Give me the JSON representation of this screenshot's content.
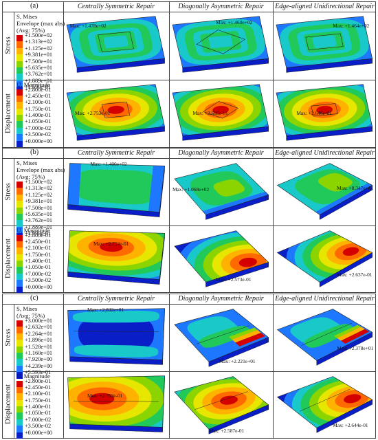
{
  "panels": [
    {
      "label": "(a)",
      "columns": [
        "Centrally Symmetric Repair",
        "Diagonally Asymmetric Repair",
        "Edge-aligned Unidirectional Repair"
      ],
      "rows": [
        {
          "name": "Stress",
          "legend": {
            "title": [
              "S, Mises",
              "Envelope (max abs)",
              "(Avg: 75%)"
            ],
            "ticks": [
              "+1.500e+02",
              "+1.313e+02",
              "+1.125e+02",
              "+9.381e+01",
              "+7.508e+01",
              "+5.635e+01",
              "+3.762e+01",
              "+1.889e+01",
              "+1.590e-01"
            ]
          },
          "max": [
            "Max: +1.478e+02",
            "Max: +1.460e+02",
            "Max: +1.464e+02"
          ]
        },
        {
          "name": "Displacement",
          "legend": {
            "title": [
              "U, Magnitude"
            ],
            "ticks": [
              "+2.800e-01",
              "+2.450e-01",
              "+2.100e-01",
              "+1.750e-01",
              "+1.400e-01",
              "+1.050e-01",
              "+7.000e-02",
              "+3.500e-02",
              "+0.000e+00"
            ]
          },
          "max": [
            "Max: +2.753e-01",
            "Max: +2.688e-01",
            "Max: +2.646e-01"
          ]
        }
      ]
    },
    {
      "label": "(b)",
      "columns": [
        "Centrally Symmetric Repair",
        "Diagonally Asymmetric Repair",
        "Edge-aligned Unidirectional Repair"
      ],
      "rows": [
        {
          "name": "Stress",
          "legend": {
            "title": [
              "S, Mises",
              "Envelope (max abs)",
              "(Avg: 75%)"
            ],
            "ticks": [
              "+1.500e+02",
              "+1.313e+02",
              "+1.125e+02",
              "+9.381e+01",
              "+7.508e+01",
              "+5.635e+01",
              "+3.762e+01",
              "+1.889e+01",
              "+1.590e-01"
            ]
          },
          "max": [
            "Max: +1.400e+02",
            "Max: +1.068e+02",
            "Max: +8.347e+01"
          ]
        },
        {
          "name": "Displacement",
          "legend": {
            "title": [
              "U, Magnitude"
            ],
            "ticks": [
              "+2.800e-01",
              "+2.450e-01",
              "+2.100e-01",
              "+1.750e-01",
              "+1.400e-01",
              "+1.050e-01",
              "+7.000e-02",
              "+3.500e-02",
              "+0.000e+00"
            ]
          },
          "max": [
            "Max: +2.753e-01",
            "Max: +2.573e-01",
            "Max: +2.637e-01"
          ]
        }
      ]
    },
    {
      "label": "(c)",
      "columns": [
        "Centrally Symmetric Repair",
        "Diagonally Asymmetric Repair",
        "Edge-aligned Unidirectional Repair"
      ],
      "rows": [
        {
          "name": "Stress",
          "legend": {
            "title": [
              "S, Mises",
              "(Avg: 75%)"
            ],
            "ticks": [
              "+3.000e+01",
              "+2.632e+01",
              "+2.264e+01",
              "+1.896e+01",
              "+1.528e+01",
              "+1.160e+01",
              "+7.920e+00",
              "+4.239e+00",
              "+5.593e-01"
            ]
          },
          "max": [
            "Max: +2.832e+01",
            "Max: +2.221e+01",
            "Max: +2.378e+01"
          ]
        },
        {
          "name": "Displacement",
          "legend": {
            "title": [
              "U, Magnitude"
            ],
            "ticks": [
              "+2.800e-01",
              "+2.450e-01",
              "+2.100e-01",
              "+1.750e-01",
              "+1.400e-01",
              "+1.050e-01",
              "+7.000e-02",
              "+3.500e-02",
              "+0.000e+00"
            ]
          },
          "max": [
            "Max: +2.753e-01",
            "Max: +2.587e-01",
            "Max: +2.644e-01"
          ]
        }
      ]
    }
  ],
  "colors": {
    "scale": [
      "#d40000",
      "#ff6a00",
      "#ffb300",
      "#e6e600",
      "#8cd400",
      "#21c85a",
      "#19c8c8",
      "#1e78ff",
      "#0a1ec8"
    ]
  }
}
